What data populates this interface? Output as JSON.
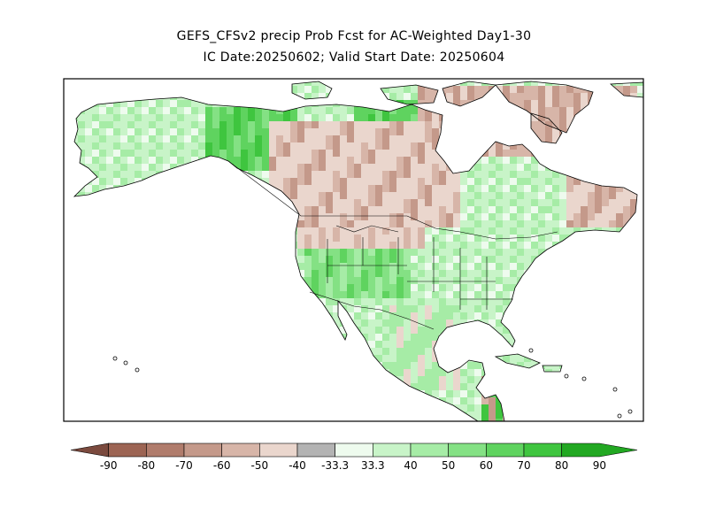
{
  "title_line1": "GEFS_CFSv2 precip Prob Fcst for AC-Weighted Day1-30",
  "title_line2": "IC Date:20250602; Valid Start Date: 20250604",
  "legend": {
    "labels": [
      "-90",
      "-80",
      "-70",
      "-60",
      "-50",
      "-40",
      "-33.3",
      "33.3",
      "40",
      "50",
      "60",
      "70",
      "80",
      "90"
    ],
    "colors": [
      "#7b4a3e",
      "#9c6453",
      "#b07c6c",
      "#c4998a",
      "#d7b5a8",
      "#ead6cd",
      "#b3b3b3",
      "#eefbee",
      "#c8f4c8",
      "#a6eca6",
      "#84e184",
      "#5fd35f",
      "#3fc53f",
      "#22a822"
    ]
  },
  "colors": {
    "land_base": "#c4f2c4",
    "land_dry": "#d9b8ab",
    "land_wet": "#62d462",
    "ocean": "#ffffff",
    "frame": "#000000"
  }
}
